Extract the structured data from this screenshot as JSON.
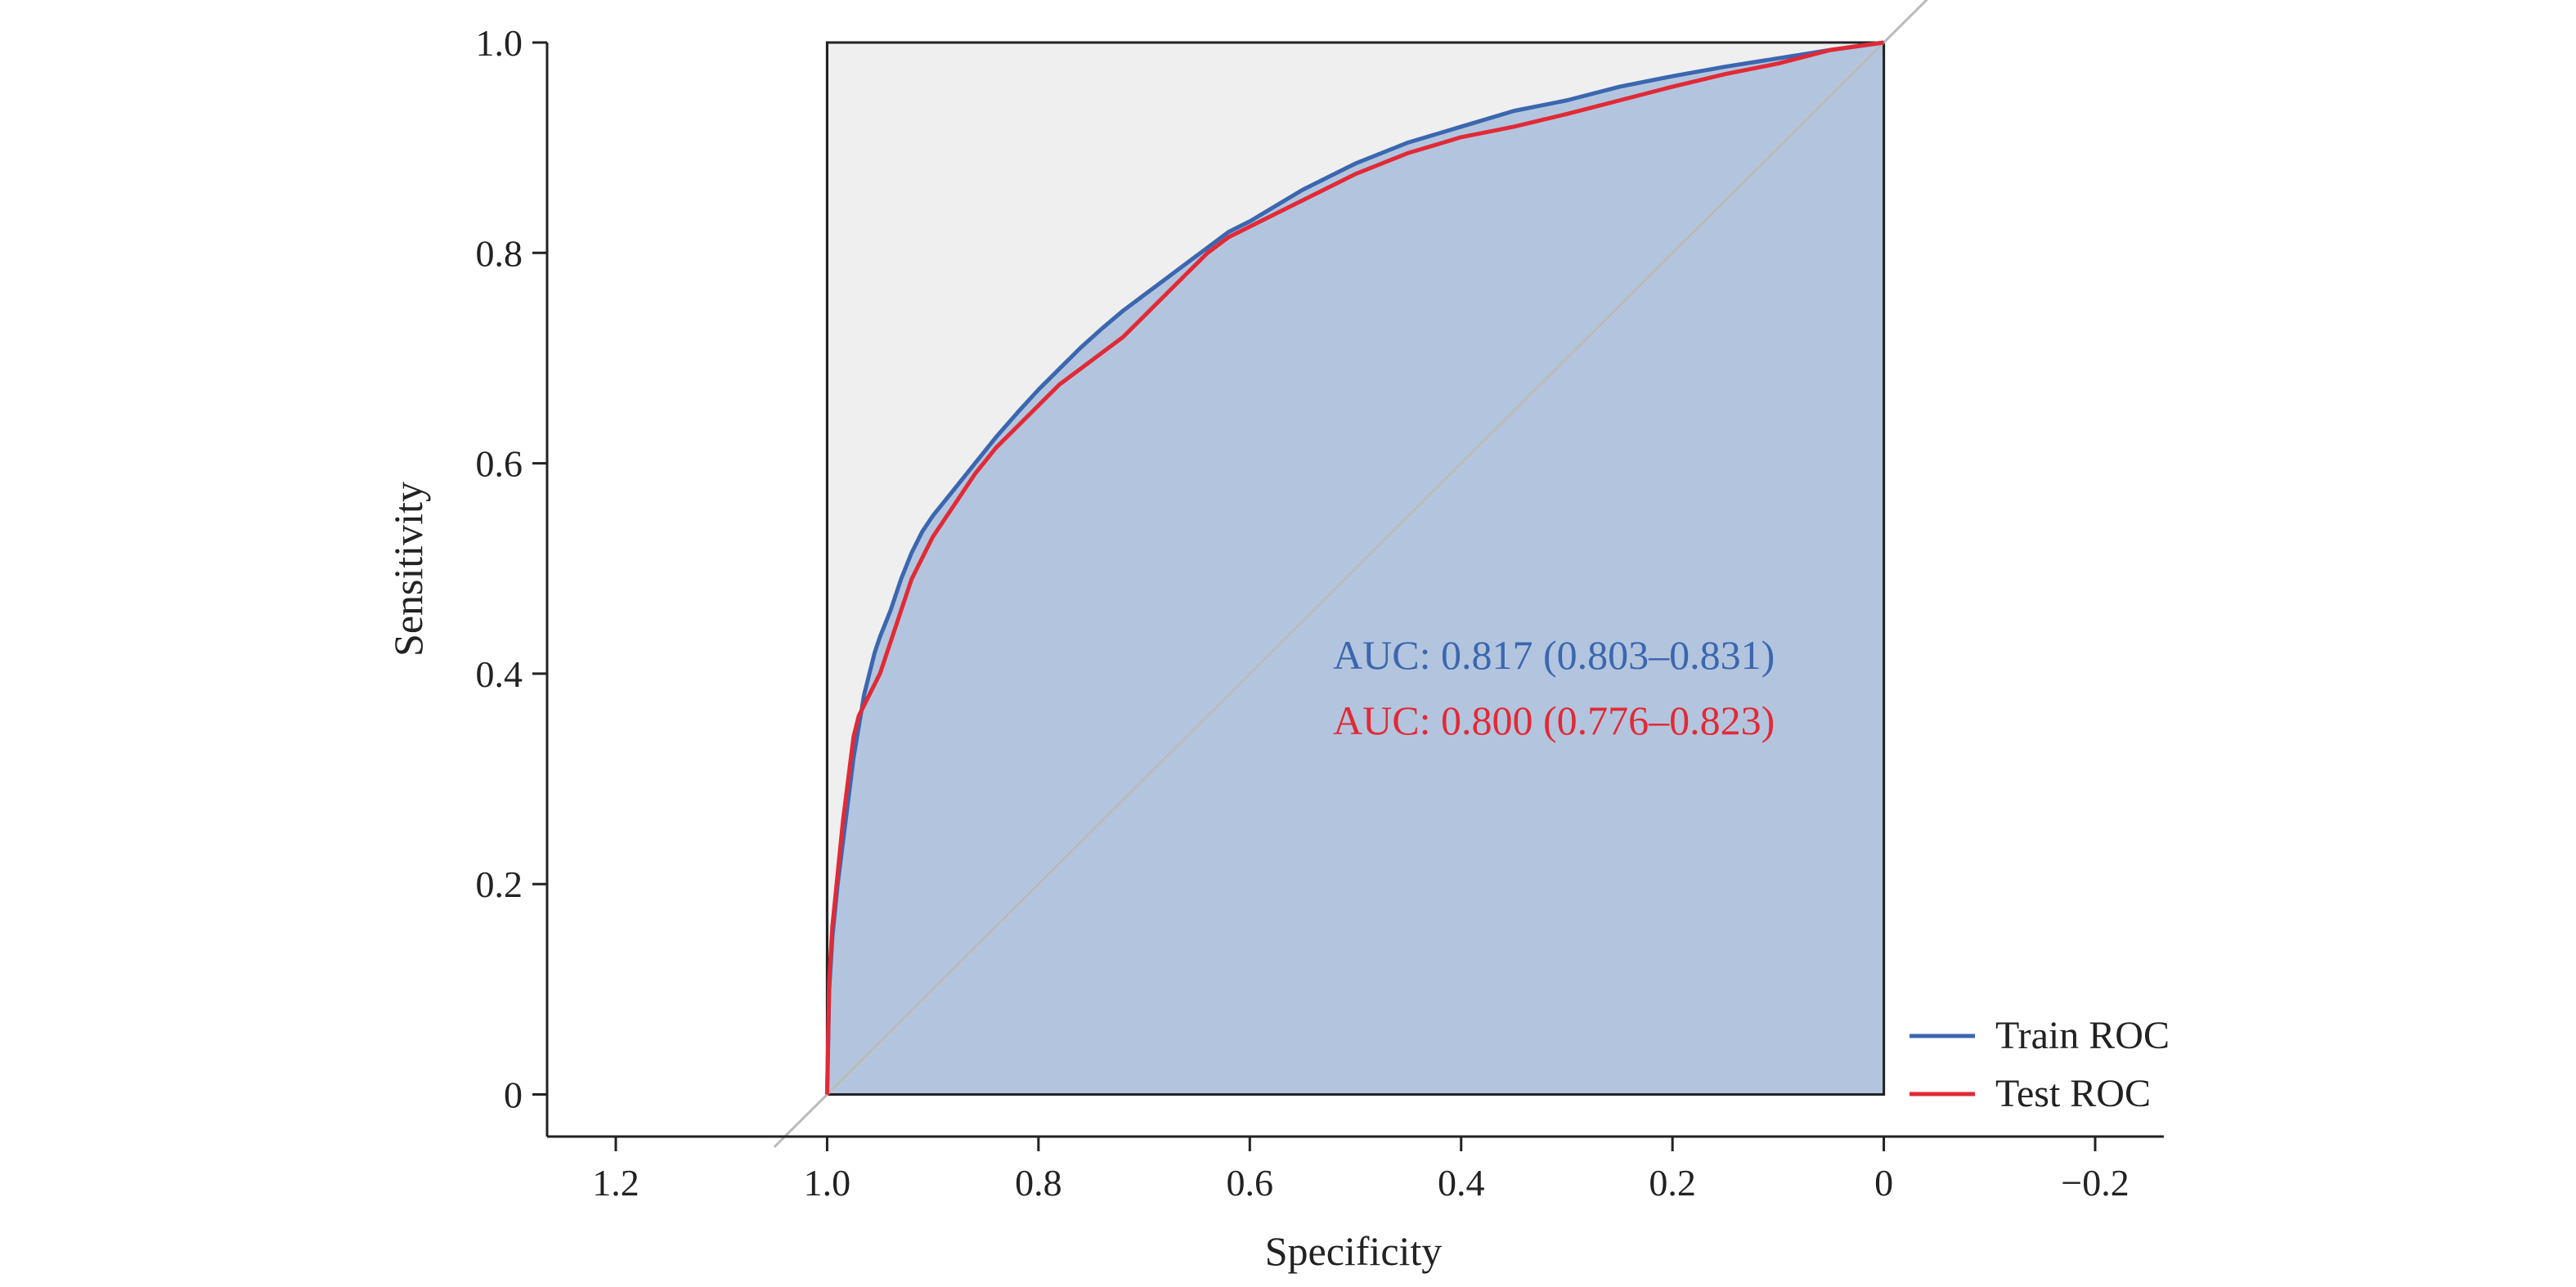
{
  "chart_data": {
    "type": "line",
    "xlabel": "Specificity",
    "ylabel": "Sensitivity",
    "x_reversed": true,
    "xlim": [
      1.265,
      -0.265
    ],
    "ylim": [
      -0.04,
      1.0
    ],
    "x_ticks": [
      1.2,
      1.0,
      0.8,
      0.6,
      0.4,
      0.2,
      0,
      -0.2
    ],
    "x_tick_labels": [
      "1.2",
      "1.0",
      "0.8",
      "0.6",
      "0.4",
      "0.2",
      "0",
      "−0.2"
    ],
    "y_ticks": [
      0,
      0.2,
      0.4,
      0.6,
      0.8,
      1.0
    ],
    "y_tick_labels": [
      "0",
      "0.2",
      "0.4",
      "0.6",
      "0.8",
      "1.0"
    ],
    "grid": false,
    "legend_position": "bottom-right",
    "reference_line": "diagonal",
    "series": [
      {
        "name": "Train ROC",
        "color": "#3b67b0",
        "fill_color": "#b3c5de",
        "x": [
          1.0,
          0.998,
          0.995,
          0.99,
          0.985,
          0.98,
          0.975,
          0.97,
          0.965,
          0.96,
          0.955,
          0.95,
          0.94,
          0.93,
          0.92,
          0.91,
          0.9,
          0.88,
          0.86,
          0.84,
          0.82,
          0.8,
          0.78,
          0.76,
          0.74,
          0.72,
          0.7,
          0.68,
          0.66,
          0.64,
          0.62,
          0.6,
          0.55,
          0.5,
          0.45,
          0.4,
          0.35,
          0.3,
          0.25,
          0.2,
          0.15,
          0.1,
          0.05,
          0.0
        ],
        "y": [
          0.0,
          0.1,
          0.15,
          0.2,
          0.24,
          0.28,
          0.32,
          0.35,
          0.38,
          0.4,
          0.42,
          0.435,
          0.46,
          0.49,
          0.515,
          0.535,
          0.55,
          0.575,
          0.6,
          0.625,
          0.648,
          0.67,
          0.69,
          0.71,
          0.728,
          0.745,
          0.76,
          0.775,
          0.79,
          0.805,
          0.82,
          0.83,
          0.86,
          0.885,
          0.905,
          0.92,
          0.935,
          0.945,
          0.958,
          0.968,
          0.977,
          0.985,
          0.993,
          1.0
        ]
      },
      {
        "name": "Test ROC",
        "color": "#e12a36",
        "x": [
          1.0,
          0.998,
          0.995,
          0.99,
          0.985,
          0.98,
          0.975,
          0.97,
          0.96,
          0.95,
          0.94,
          0.93,
          0.92,
          0.91,
          0.9,
          0.88,
          0.86,
          0.84,
          0.82,
          0.8,
          0.78,
          0.76,
          0.74,
          0.72,
          0.7,
          0.68,
          0.66,
          0.64,
          0.62,
          0.6,
          0.55,
          0.5,
          0.45,
          0.4,
          0.35,
          0.3,
          0.25,
          0.2,
          0.15,
          0.1,
          0.05,
          0.0
        ],
        "y": [
          0.0,
          0.11,
          0.16,
          0.21,
          0.26,
          0.3,
          0.34,
          0.36,
          0.38,
          0.4,
          0.43,
          0.46,
          0.49,
          0.51,
          0.53,
          0.56,
          0.59,
          0.615,
          0.635,
          0.655,
          0.675,
          0.69,
          0.705,
          0.72,
          0.74,
          0.76,
          0.78,
          0.8,
          0.815,
          0.825,
          0.85,
          0.875,
          0.895,
          0.91,
          0.92,
          0.932,
          0.945,
          0.958,
          0.97,
          0.98,
          0.993,
          1.0
        ]
      }
    ],
    "annotations": [
      {
        "id": "train",
        "text": "AUC: 0.817 (0.803–0.831)",
        "color": "#3b67b0"
      },
      {
        "id": "test",
        "text": "AUC: 0.800 (0.776–0.823)",
        "color": "#e12a36"
      }
    ]
  },
  "colors": {
    "plot_background": "#efefef",
    "diagonal": "#bbbbbb",
    "axis": "#222222"
  }
}
